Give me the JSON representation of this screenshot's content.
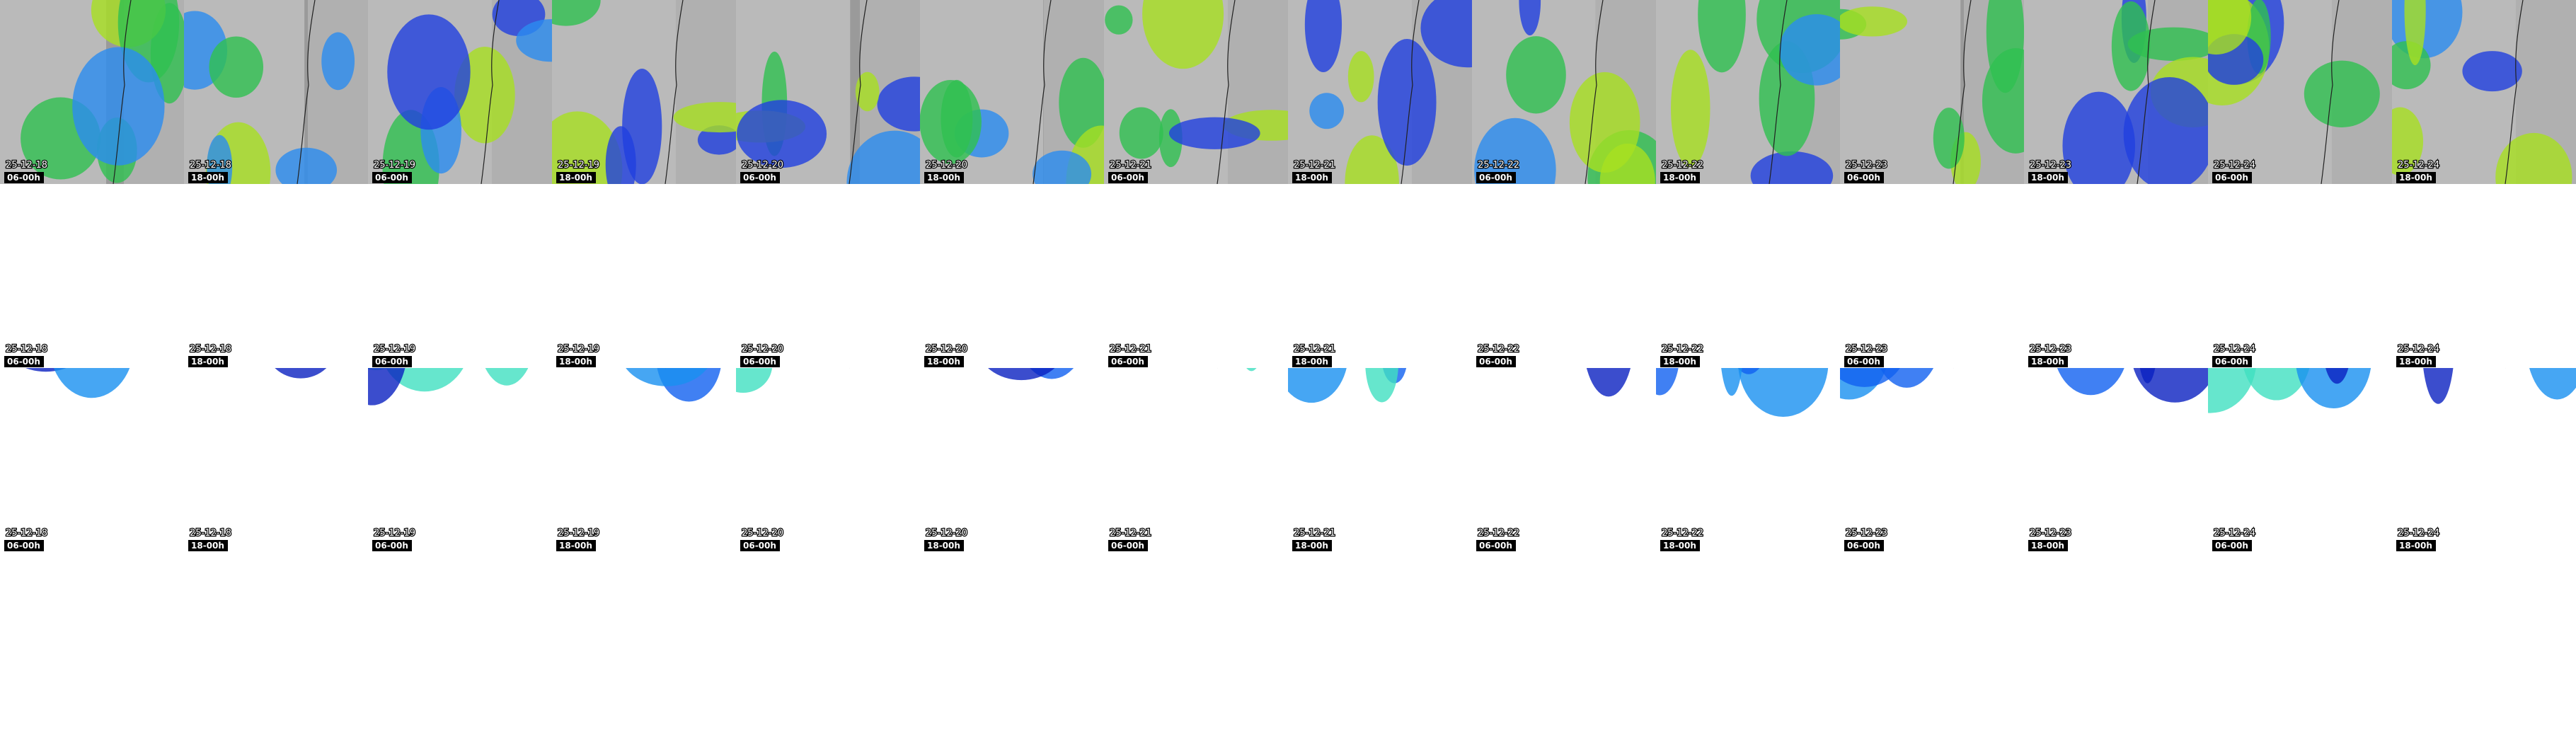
{
  "columns": [
    {
      "date": "25-12-18",
      "time": "06-00h"
    },
    {
      "date": "25-12-18",
      "time": "18-00h"
    },
    {
      "date": "25-12-19",
      "time": "06-00h"
    },
    {
      "date": "25-12-19",
      "time": "18-00h"
    },
    {
      "date": "25-12-20",
      "time": "06-00h"
    },
    {
      "date": "25-12-20",
      "time": "18-00h"
    },
    {
      "date": "25-12-21",
      "time": "06-00h"
    },
    {
      "date": "25-12-21",
      "time": "18-00h"
    },
    {
      "date": "25-12-22",
      "time": "06-00h"
    },
    {
      "date": "25-12-22",
      "time": "18-00h"
    },
    {
      "date": "25-12-23",
      "time": "06-00h"
    },
    {
      "date": "25-12-23",
      "time": "18-00h"
    },
    {
      "date": "25-12-24",
      "time": "06-00h"
    },
    {
      "date": "25-12-24",
      "time": "18-00h"
    }
  ]
}
